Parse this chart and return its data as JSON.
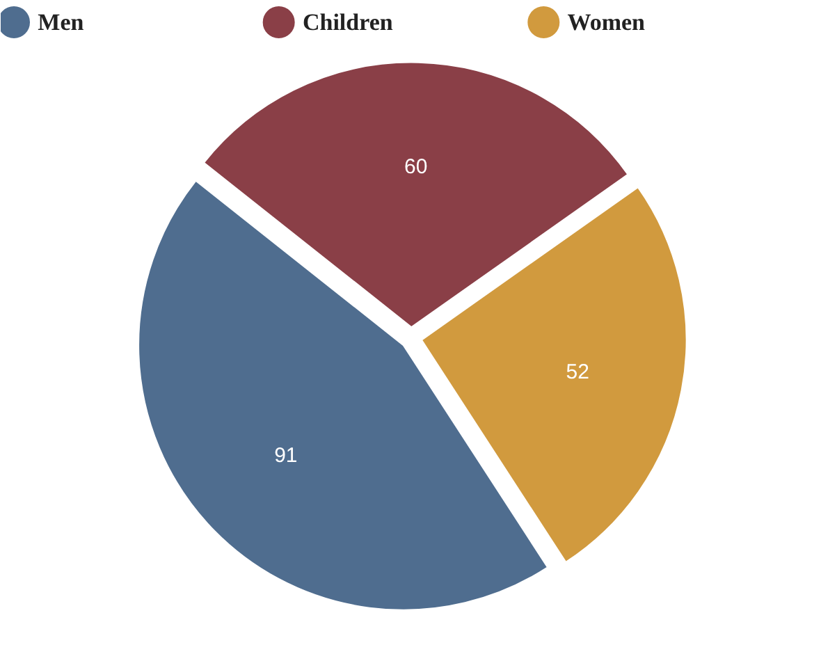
{
  "chart_data": {
    "type": "pie",
    "categories": [
      "Men",
      "Children",
      "Women"
    ],
    "values": [
      91,
      60,
      52
    ],
    "colors": [
      "#4f6d8f",
      "#8a3f47",
      "#d19a3e"
    ],
    "data_labels": true,
    "legend": "top"
  }
}
